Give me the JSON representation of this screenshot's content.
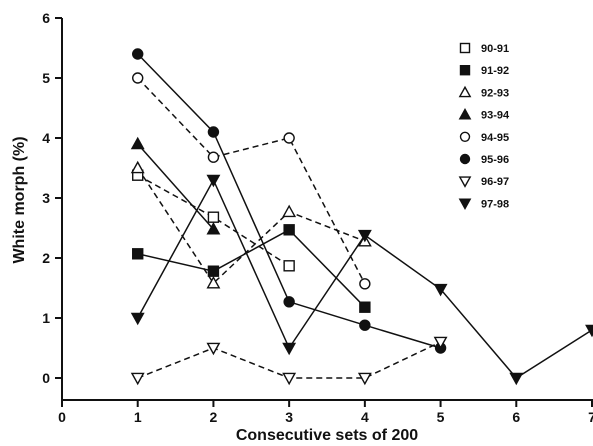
{
  "chart_data": {
    "type": "line",
    "title": "",
    "xlabel": "Consecutive sets of 200",
    "ylabel": "White morph (%)",
    "xlim": [
      0,
      7
    ],
    "ylim": [
      0,
      6
    ],
    "xticks": [
      "0",
      "1",
      "2",
      "3",
      "4",
      "5",
      "6",
      "7"
    ],
    "yticks": [
      "0",
      "1",
      "2",
      "3",
      "4",
      "5",
      "6"
    ],
    "legend_position": "top-right",
    "series": [
      {
        "name": "90-91",
        "marker": "square-open",
        "dash": "dashed",
        "x": [
          1,
          2,
          3
        ],
        "y": [
          3.38,
          2.68,
          1.87
        ]
      },
      {
        "name": "91-92",
        "marker": "square-filled",
        "dash": "solid",
        "x": [
          1,
          2,
          3,
          4
        ],
        "y": [
          2.07,
          1.78,
          2.47,
          1.18
        ]
      },
      {
        "name": "92-93",
        "marker": "triangle-up-open",
        "dash": "dashed",
        "x": [
          1,
          2,
          3,
          4
        ],
        "y": [
          3.5,
          1.58,
          2.77,
          2.28
        ]
      },
      {
        "name": "93-94",
        "marker": "triangle-up-filled",
        "dash": "solid",
        "x": [
          1,
          2
        ],
        "y": [
          3.9,
          2.48
        ]
      },
      {
        "name": "94-95",
        "marker": "circle-open",
        "dash": "dashed",
        "x": [
          1,
          2,
          3,
          4
        ],
        "y": [
          5.0,
          3.68,
          4.0,
          1.57
        ]
      },
      {
        "name": "95-96",
        "marker": "circle-filled",
        "dash": "solid",
        "x": [
          1,
          2,
          3,
          4,
          5
        ],
        "y": [
          5.4,
          4.1,
          1.27,
          0.88,
          0.5
        ]
      },
      {
        "name": "96-97",
        "marker": "triangle-down-open",
        "dash": "dashed",
        "x": [
          1,
          2,
          3,
          4,
          5
        ],
        "y": [
          0.0,
          0.5,
          0.0,
          0.0,
          0.6
        ]
      },
      {
        "name": "97-98",
        "marker": "triangle-down-filled",
        "dash": "solid",
        "x": [
          1,
          2,
          3,
          4,
          5,
          6,
          7
        ],
        "y": [
          1.0,
          3.3,
          0.5,
          2.38,
          1.48,
          0.0,
          0.8
        ]
      }
    ]
  }
}
